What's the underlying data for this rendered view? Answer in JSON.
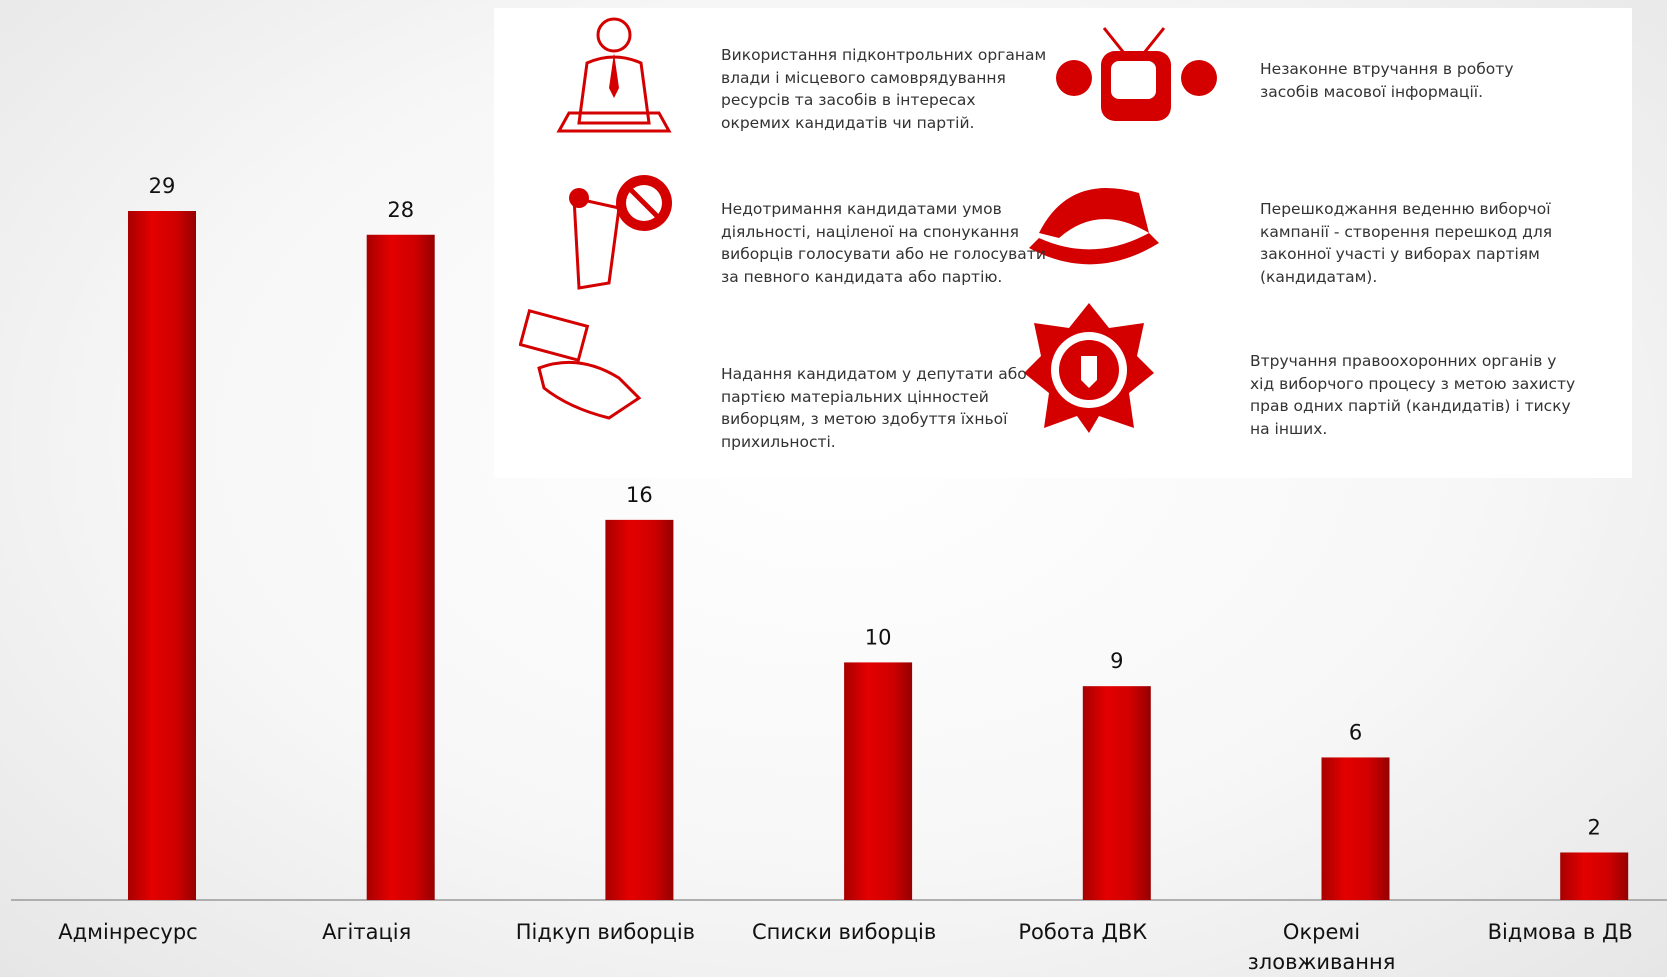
{
  "chart_data": {
    "type": "bar",
    "categories": [
      "Адмінресурс",
      "Агітація",
      "Підкуп виборців",
      "Списки виборців",
      "Робота ДВК",
      "Окремі зловживання",
      "Відмова в ДВ"
    ],
    "values": [
      29,
      28,
      16,
      10,
      9,
      6,
      2
    ],
    "color": "#d40000"
  },
  "infographic": {
    "items": [
      {
        "lines": [
          "Використання підконтрольних органам",
          "влади і місцевого самоврядування",
          "ресурсів та засобів в інтересах",
          "окремих кандидатів чи партій."
        ]
      },
      {
        "lines": [
          "Незаконне втручання в роботу",
          "засобів масової інформації."
        ]
      },
      {
        "lines": [
          "Недотримання кандидатами умов",
          "діяльності, націленої на спонукання",
          "виборців голосувати або не голосувати",
          "за певного кандидата або партію."
        ]
      },
      {
        "lines": [
          "Перешкоджання веденню виборчої",
          "кампанії - створення перешкод для",
          "законної участі у виборах партіям",
          "(кандидатам)."
        ]
      },
      {
        "lines": [
          "Надання кандидатом у депутати або",
          "партією матеріальних цінностей",
          "виборцям, з метою здобуття їхньої",
          "прихильності."
        ]
      },
      {
        "lines": [
          "Втручання правоохоронних органів у",
          "хід виборчого процесу з метою захисту",
          "прав одних партій (кандидатів) і тиску",
          "на інших."
        ]
      }
    ]
  }
}
